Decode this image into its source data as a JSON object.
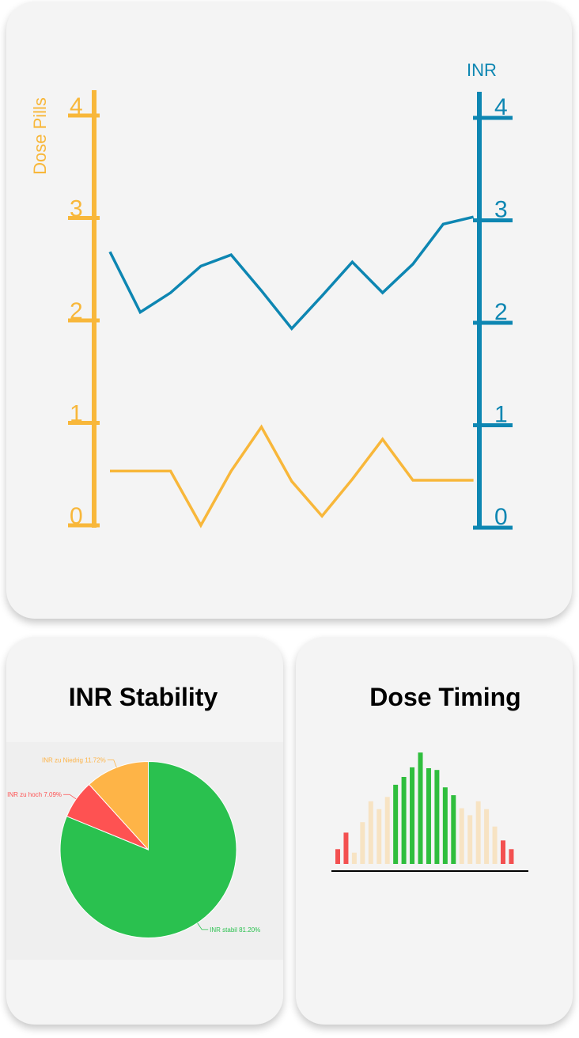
{
  "colors": {
    "dose": "#f8b73a",
    "inr": "#0d86b2",
    "pie_green": "#2ac14f",
    "pie_red": "#fe5252",
    "pie_orange": "#feb447",
    "bar_red": "#f35050",
    "bar_beige": "#f7e3c3",
    "bar_green": "#2fbe3d"
  },
  "main_chart": {
    "chart_data": {
      "type": "line",
      "left_axis": {
        "label": "Dose Pills",
        "ticks": [
          "0",
          "1",
          "2",
          "3",
          "4"
        ],
        "range": [
          0,
          4
        ]
      },
      "right_axis": {
        "label": "INR",
        "ticks": [
          "0",
          "1",
          "2",
          "3",
          "4"
        ],
        "range": [
          0,
          4
        ]
      },
      "series": [
        {
          "axis": "right",
          "color": "#0d86b2",
          "x": [
            0,
            1,
            2,
            3,
            4,
            5,
            6,
            7,
            8,
            9,
            10,
            11,
            12
          ],
          "values": [
            2.67,
            2.08,
            2.27,
            2.53,
            2.64,
            2.29,
            1.92,
            2.24,
            2.57,
            2.27,
            2.55,
            2.94,
            3.01
          ]
        },
        {
          "axis": "left",
          "color": "#f8b73a",
          "x": [
            0,
            1,
            2,
            3,
            4,
            5,
            6,
            7,
            8,
            9,
            10,
            11,
            12
          ],
          "values": [
            0.53,
            0.53,
            0.53,
            0.0,
            0.53,
            0.96,
            0.43,
            0.09,
            0.45,
            0.84,
            0.44,
            0.44,
            0.44
          ]
        }
      ]
    }
  },
  "pie_chart": {
    "title": "INR Stability",
    "chart_data": {
      "type": "pie",
      "slices": [
        {
          "label": "INR stabil 81.20%",
          "value": 81.2,
          "color": "#2ac14f"
        },
        {
          "label": "INR zu hoch 7.09%",
          "value": 7.09,
          "color": "#fe5252"
        },
        {
          "label": "INR zu Niedrig 11.72%",
          "value": 11.72,
          "color": "#feb447"
        }
      ]
    }
  },
  "bar_chart": {
    "title": "Dose Timing",
    "chart_data": {
      "type": "bar",
      "values": [
        0.17,
        0.36,
        0.13,
        0.48,
        0.72,
        0.63,
        0.77,
        0.91,
        1.0,
        1.11,
        1.28,
        1.1,
        1.08,
        0.88,
        0.79,
        0.64,
        0.56,
        0.72,
        0.63,
        0.43,
        0.27,
        0.17
      ],
      "groups": [
        "red",
        "red",
        "beige",
        "beige",
        "beige",
        "beige",
        "beige",
        "green",
        "green",
        "green",
        "green",
        "green",
        "green",
        "green",
        "green",
        "beige",
        "beige",
        "beige",
        "beige",
        "beige",
        "red",
        "red"
      ]
    }
  }
}
